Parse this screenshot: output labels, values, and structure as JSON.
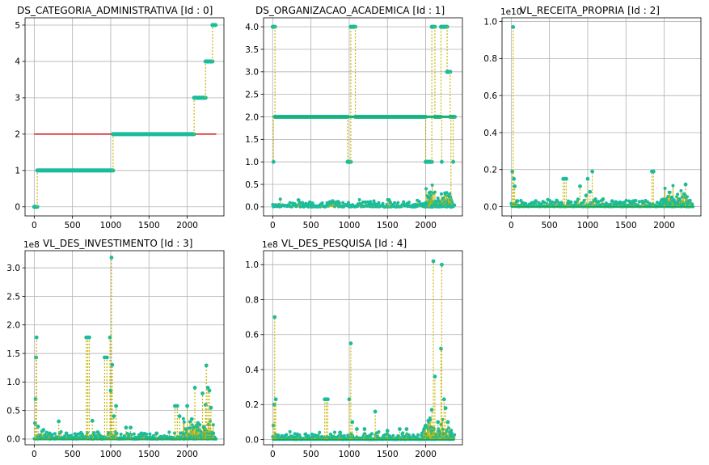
{
  "chart_data": [
    {
      "type": "scatter",
      "title": "DS_CATEGORIA_ADMINISTRATIVA     [Id    : 0]",
      "exponent_label": "",
      "xlim": [
        -120,
        2480
      ],
      "ylim": [
        -0.25,
        5.2
      ],
      "xticks": [
        0,
        500,
        1000,
        1500,
        2000
      ],
      "yticks": [
        0,
        1,
        2,
        3,
        4,
        5
      ],
      "ytick_labels": [
        "0",
        "1",
        "2",
        "3",
        "4",
        "5"
      ],
      "grid": true,
      "colors": {
        "marker": "#1abc9c",
        "stem": "#c8b400",
        "baseline": "#d62728",
        "mean": "#2ca02c"
      },
      "baseline": 2,
      "segments": [
        {
          "x": [
            0,
            40
          ],
          "y": 0
        },
        {
          "x": [
            40,
            1030
          ],
          "y": 1
        },
        {
          "x": [
            1030,
            2090
          ],
          "y": 2
        },
        {
          "x": [
            2090,
            2240
          ],
          "y": 3
        },
        {
          "x": [
            2240,
            2330
          ],
          "y": 4
        },
        {
          "x": [
            2330,
            2370
          ],
          "y": 5
        }
      ],
      "spikes": []
    },
    {
      "type": "scatter",
      "title": "DS_ORGANIZACAO_ACADEMICA     [Id    : 1]",
      "exponent_label": "",
      "xlim": [
        -120,
        2480
      ],
      "ylim": [
        -0.2,
        4.2
      ],
      "xticks": [
        0,
        500,
        1000,
        1500,
        2000
      ],
      "yticks": [
        0,
        0.5,
        1,
        1.5,
        2,
        2.5,
        3,
        3.5,
        4
      ],
      "ytick_labels": [
        "0.0",
        "0.5",
        "1.0",
        "1.5",
        "2.0",
        "2.5",
        "3.0",
        "3.5",
        "4.0"
      ],
      "grid": true,
      "colors": {
        "marker": "#1abc9c",
        "stem": "#c8b400",
        "baseline": "#d62728",
        "mean": "#2ca02c"
      },
      "baseline": 2,
      "segments": [
        {
          "x": [
            0,
            30
          ],
          "y": 4
        },
        {
          "x": [
            30,
            980
          ],
          "y": 2
        },
        {
          "x": [
            980,
            1020
          ],
          "y": 1
        },
        {
          "x": [
            1020,
            1080
          ],
          "y": 4
        },
        {
          "x": [
            1080,
            2000
          ],
          "y": 2
        },
        {
          "x": [
            2000,
            2080
          ],
          "y": 1
        },
        {
          "x": [
            2080,
            2120
          ],
          "y": 4
        },
        {
          "x": [
            2120,
            2200
          ],
          "y": 2
        },
        {
          "x": [
            2200,
            2280
          ],
          "y": 4
        },
        {
          "x": [
            2280,
            2320
          ],
          "y": 3
        },
        {
          "x": [
            2320,
            2380
          ],
          "y": 2
        }
      ],
      "spikes": [
        [
          10,
          1
        ],
        [
          2210,
          1
        ],
        [
          2330,
          0
        ],
        [
          2360,
          1
        ]
      ]
    },
    {
      "type": "scatter",
      "title": "VL_RECEITA_PROPRIA     [Id    : 2]",
      "exponent_label": "1e10",
      "xlim": [
        -120,
        2480
      ],
      "ylim": [
        -0.05,
        1.02
      ],
      "xticks": [
        0,
        500,
        1000,
        1500,
        2000
      ],
      "yticks": [
        0,
        0.2,
        0.4,
        0.6,
        0.8,
        1.0
      ],
      "ytick_labels": [
        "0.0",
        "0.2",
        "0.4",
        "0.6",
        "0.8",
        "1.0"
      ],
      "grid": true,
      "colors": {
        "marker": "#1abc9c",
        "stem": "#c8b400",
        "baseline": "#d62728",
        "mean": "#2ca02c"
      },
      "baseline": 0,
      "segments": [],
      "spikes": [
        [
          15,
          0.19
        ],
        [
          25,
          0.97
        ],
        [
          35,
          0.15
        ],
        [
          45,
          0.11
        ],
        [
          80,
          0.03
        ],
        [
          150,
          0.02
        ],
        [
          320,
          0.03
        ],
        [
          520,
          0.02
        ],
        [
          680,
          0.15
        ],
        [
          700,
          0.15
        ],
        [
          720,
          0.15
        ],
        [
          760,
          0.02
        ],
        [
          900,
          0.11
        ],
        [
          980,
          0.06
        ],
        [
          1000,
          0.15
        ],
        [
          1030,
          0.08
        ],
        [
          1060,
          0.19
        ],
        [
          1100,
          0.04
        ],
        [
          1200,
          0.04
        ],
        [
          1320,
          0.03
        ],
        [
          1440,
          0.02
        ],
        [
          1600,
          0.03
        ],
        [
          1840,
          0.19
        ],
        [
          1860,
          0.19
        ],
        [
          2000,
          0.03
        ],
        [
          2100,
          0.05
        ],
        [
          2200,
          0.04
        ],
        [
          2280,
          0.12
        ],
        [
          2330,
          0.03
        ]
      ]
    },
    {
      "type": "scatter",
      "title": "VL_DES_INVESTIMENTO     [Id    : 3]",
      "exponent_label": "1e8",
      "xlim": [
        -120,
        2480
      ],
      "ylim": [
        -0.1,
        3.3
      ],
      "xticks": [
        0,
        500,
        1000,
        1500,
        2000
      ],
      "yticks": [
        0,
        0.5,
        1.0,
        1.5,
        2.0,
        2.5,
        3.0
      ],
      "ytick_labels": [
        "0.0",
        "0.5",
        "1.0",
        "1.5",
        "2.0",
        "2.5",
        "3.0"
      ],
      "grid": true,
      "colors": {
        "marker": "#1abc9c",
        "stem": "#c8b400",
        "baseline": "#d62728",
        "mean": "#2ca02c"
      },
      "baseline": 0,
      "segments": [],
      "spikes": [
        [
          10,
          0.28
        ],
        [
          18,
          0.7
        ],
        [
          25,
          1.43
        ],
        [
          30,
          1.78
        ],
        [
          50,
          0.22
        ],
        [
          120,
          0.16
        ],
        [
          200,
          0.1
        ],
        [
          320,
          0.31
        ],
        [
          420,
          0.1
        ],
        [
          560,
          0.08
        ],
        [
          680,
          1.78
        ],
        [
          700,
          1.78
        ],
        [
          720,
          1.78
        ],
        [
          760,
          0.32
        ],
        [
          830,
          0.12
        ],
        [
          920,
          1.43
        ],
        [
          950,
          1.43
        ],
        [
          990,
          1.78
        ],
        [
          1000,
          0.85
        ],
        [
          1010,
          3.18
        ],
        [
          1020,
          1.3
        ],
        [
          1040,
          0.4
        ],
        [
          1070,
          0.58
        ],
        [
          1200,
          0.2
        ],
        [
          1260,
          0.2
        ],
        [
          1400,
          0.1
        ],
        [
          1600,
          0.1
        ],
        [
          1700,
          0.05
        ],
        [
          1840,
          0.58
        ],
        [
          1870,
          0.58
        ],
        [
          1900,
          0.4
        ],
        [
          2000,
          0.58
        ],
        [
          2060,
          0.35
        ],
        [
          2100,
          0.9
        ],
        [
          2140,
          0.28
        ],
        [
          2200,
          0.8
        ],
        [
          2240,
          0.6
        ],
        [
          2250,
          1.29
        ],
        [
          2270,
          0.9
        ],
        [
          2290,
          0.85
        ],
        [
          2310,
          0.55
        ],
        [
          2340,
          0.1
        ]
      ]
    },
    {
      "type": "scatter",
      "title": "VL_DES_PESQUISA     [Id    : 4]",
      "exponent_label": "1e8",
      "xlim": [
        -120,
        2480
      ],
      "ylim": [
        -0.03,
        1.08
      ],
      "xticks": [
        0,
        500,
        1000,
        1500,
        2000
      ],
      "yticks": [
        0,
        0.2,
        0.4,
        0.6,
        0.8,
        1.0
      ],
      "ytick_labels": [
        "0.0",
        "0.2",
        "0.4",
        "0.6",
        "0.8",
        "1.0"
      ],
      "grid": true,
      "colors": {
        "marker": "#1abc9c",
        "stem": "#c8b400",
        "baseline": "#d62728",
        "mean": "#2ca02c"
      },
      "baseline": 0,
      "segments": [],
      "spikes": [
        [
          10,
          0.08
        ],
        [
          18,
          0.2
        ],
        [
          25,
          0.7
        ],
        [
          40,
          0.23
        ],
        [
          120,
          0.02
        ],
        [
          320,
          0.03
        ],
        [
          560,
          0.02
        ],
        [
          680,
          0.23
        ],
        [
          700,
          0.23
        ],
        [
          720,
          0.23
        ],
        [
          880,
          0.04
        ],
        [
          1000,
          0.23
        ],
        [
          1020,
          0.55
        ],
        [
          1040,
          0.1
        ],
        [
          1100,
          0.06
        ],
        [
          1200,
          0.06
        ],
        [
          1340,
          0.16
        ],
        [
          1500,
          0.05
        ],
        [
          1660,
          0.06
        ],
        [
          1750,
          0.06
        ],
        [
          1980,
          0.06
        ],
        [
          2000,
          0.08
        ],
        [
          2080,
          0.17
        ],
        [
          2100,
          1.02
        ],
        [
          2120,
          0.36
        ],
        [
          2160,
          0.1
        ],
        [
          2200,
          0.52
        ],
        [
          2210,
          1.0
        ],
        [
          2240,
          0.23
        ],
        [
          2260,
          0.18
        ],
        [
          2290,
          0.1
        ],
        [
          2330,
          0.02
        ]
      ]
    }
  ]
}
